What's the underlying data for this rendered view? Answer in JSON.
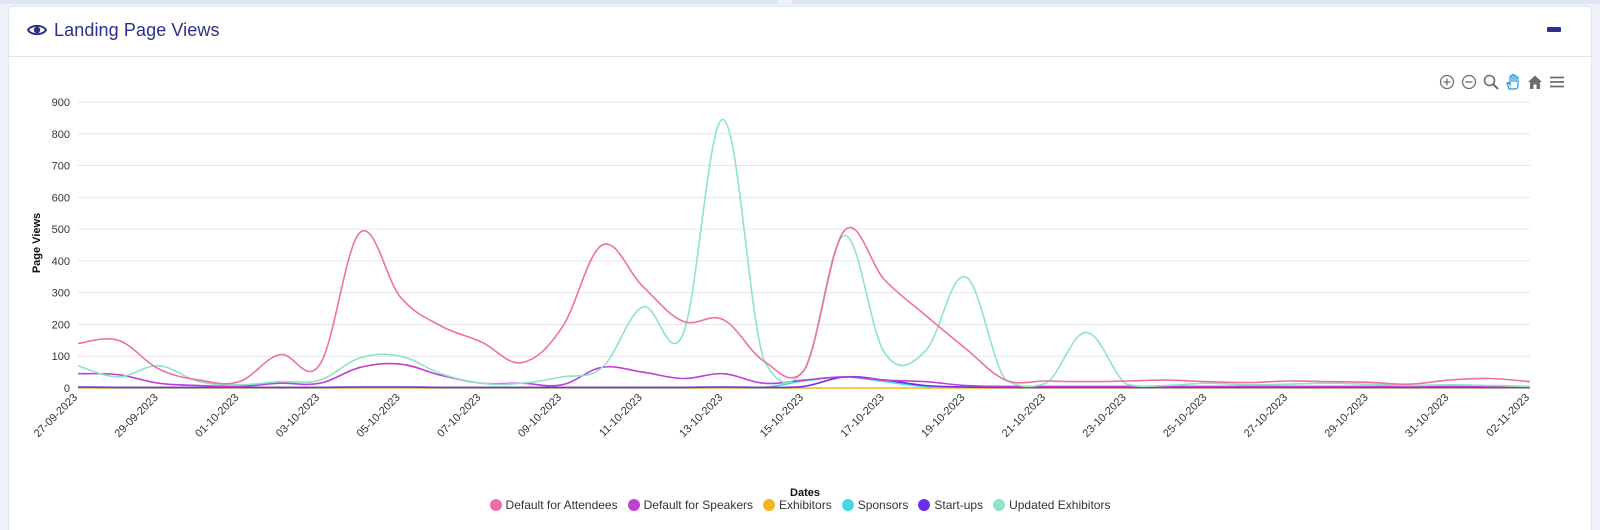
{
  "card": {
    "title": "Landing Page Views",
    "icon": "eye-icon",
    "collapse_icon": "minus-icon"
  },
  "toolbar": {
    "tools": [
      "zoom-in-icon",
      "zoom-out-icon",
      "zoom-select-icon",
      "pan-icon",
      "reset-home-icon",
      "menu-icon"
    ],
    "active_tool": "pan-icon"
  },
  "colors": {
    "title": "#2d2f8c",
    "grid": "#e6e6e6",
    "toolbar_active": "#1a9be0"
  },
  "chart_data": {
    "type": "line",
    "xlabel": "Dates",
    "ylabel": "Page Views",
    "ylim": [
      0,
      900
    ],
    "yticks": [
      0,
      100,
      200,
      300,
      400,
      500,
      600,
      700,
      800,
      900
    ],
    "grid": true,
    "legend_position": "bottom",
    "x": [
      "27-09-2023",
      "28-09-2023",
      "29-09-2023",
      "30-09-2023",
      "01-10-2023",
      "02-10-2023",
      "03-10-2023",
      "04-10-2023",
      "05-10-2023",
      "06-10-2023",
      "07-10-2023",
      "08-10-2023",
      "09-10-2023",
      "10-10-2023",
      "11-10-2023",
      "12-10-2023",
      "13-10-2023",
      "14-10-2023",
      "15-10-2023",
      "16-10-2023",
      "17-10-2023",
      "18-10-2023",
      "19-10-2023",
      "20-10-2023",
      "21-10-2023",
      "22-10-2023",
      "23-10-2023",
      "24-10-2023",
      "25-10-2023",
      "26-10-2023",
      "27-10-2023",
      "28-10-2023",
      "29-10-2023",
      "30-10-2023",
      "31-10-2023",
      "01-11-2023",
      "02-11-2023"
    ],
    "xtick_labels": [
      "27-09-2023",
      "29-09-2023",
      "01-10-2023",
      "03-10-2023",
      "05-10-2023",
      "07-10-2023",
      "09-10-2023",
      "11-10-2023",
      "13-10-2023",
      "15-10-2023",
      "17-10-2023",
      "19-10-2023",
      "21-10-2023",
      "23-10-2023",
      "25-10-2023",
      "27-10-2023",
      "29-10-2023",
      "31-10-2023",
      "02-11-2023"
    ],
    "series": [
      {
        "name": "Default for Attendees",
        "color": "#ef6fa8",
        "values": [
          140,
          150,
          60,
          25,
          20,
          105,
          75,
          490,
          285,
          195,
          145,
          80,
          190,
          450,
          320,
          210,
          215,
          85,
          55,
          495,
          340,
          230,
          125,
          25,
          22,
          20,
          22,
          25,
          20,
          17,
          22,
          20,
          18,
          12,
          25,
          30,
          20
        ]
      },
      {
        "name": "Default for Speakers",
        "color": "#c03fd6",
        "values": [
          45,
          42,
          15,
          8,
          5,
          15,
          15,
          65,
          75,
          40,
          15,
          15,
          10,
          65,
          50,
          30,
          45,
          15,
          25,
          35,
          25,
          20,
          8,
          5,
          5,
          5,
          5,
          5,
          5,
          5,
          5,
          5,
          5,
          5,
          5,
          5,
          5
        ]
      },
      {
        "name": "Exhibitors",
        "color": "#f2b51c",
        "values": [
          0,
          0,
          0,
          0,
          0,
          0,
          0,
          0,
          0,
          0,
          0,
          0,
          0,
          0,
          0,
          0,
          0,
          0,
          0,
          0,
          0,
          0,
          0,
          0,
          0,
          0,
          0,
          0,
          0,
          0,
          0,
          0,
          0,
          0,
          0,
          0,
          0
        ]
      },
      {
        "name": "Sponsors",
        "color": "#4ad6e6",
        "values": [
          3,
          2,
          2,
          2,
          2,
          2,
          2,
          3,
          3,
          2,
          2,
          2,
          2,
          2,
          2,
          2,
          3,
          2,
          22,
          35,
          20,
          5,
          3,
          2,
          2,
          2,
          2,
          2,
          2,
          2,
          2,
          2,
          2,
          2,
          2,
          2,
          2
        ]
      },
      {
        "name": "Start-ups",
        "color": "#6a2fe8",
        "values": [
          3,
          2,
          2,
          2,
          2,
          2,
          2,
          3,
          3,
          2,
          2,
          2,
          2,
          2,
          2,
          2,
          3,
          2,
          5,
          35,
          25,
          8,
          3,
          2,
          2,
          2,
          2,
          2,
          2,
          2,
          2,
          2,
          2,
          2,
          2,
          2,
          2
        ]
      },
      {
        "name": "Updated Exhibitors",
        "color": "#8ee3c8",
        "values": [
          70,
          35,
          70,
          20,
          10,
          20,
          25,
          95,
          100,
          45,
          15,
          15,
          35,
          65,
          255,
          170,
          845,
          90,
          55,
          480,
          110,
          115,
          350,
          25,
          15,
          175,
          12,
          8,
          15,
          10,
          12,
          15,
          12,
          8,
          10,
          8,
          5
        ]
      }
    ]
  }
}
